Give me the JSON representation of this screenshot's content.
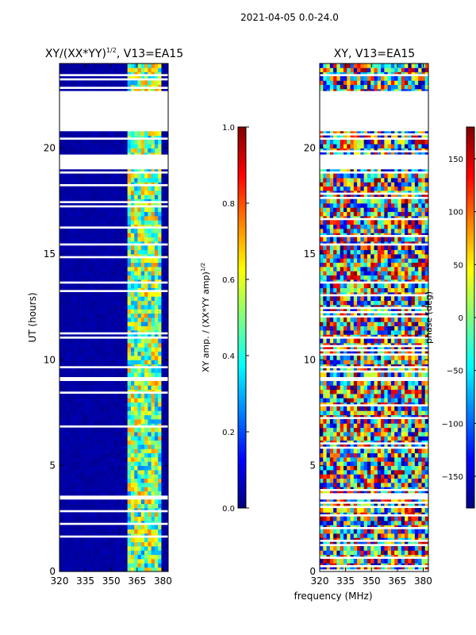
{
  "figure": {
    "suptitle": "2021-04-05 0.0-24.0",
    "xlabel": "frequency (MHz)"
  },
  "chart_data": [
    {
      "type": "heatmap",
      "title_main": "XY/(XX*YY)",
      "title_sup": "1/2",
      "title_rest": ", V13=EA15",
      "xlabel": "",
      "ylabel": "UT (hours)",
      "xlim": [
        320,
        383
      ],
      "ylim": [
        0,
        24
      ],
      "xticks": [
        320,
        335,
        350,
        365,
        380
      ],
      "yticks": [
        0,
        5,
        10,
        15,
        20
      ],
      "colormap": "jet",
      "value_range": [
        0,
        1
      ],
      "colorbar": {
        "label_main": "XY amp. / (XX*YY amp)",
        "label_sup": "1/2",
        "range": [
          0.0,
          1.0
        ],
        "ticks": [
          "0.0",
          "0.2",
          "0.4",
          "0.6",
          "0.8",
          "1.0"
        ],
        "tick_values": [
          0.0,
          0.2,
          0.4,
          0.6,
          0.8,
          1.0
        ]
      },
      "blank_time_ranges_hours": [
        [
          3.5,
          3.7
        ],
        [
          9.0,
          9.2
        ],
        [
          19.0,
          19.6
        ],
        [
          20.8,
          21.0
        ],
        [
          21.0,
          22.0
        ],
        [
          22.05,
          22.6
        ]
      ],
      "active_band_mhz": [
        360,
        380
      ],
      "background_value": 0.02
    },
    {
      "type": "heatmap",
      "title": "XY, V13=EA15",
      "xlabel": "",
      "ylabel": "",
      "xlim": [
        320,
        383
      ],
      "ylim": [
        0,
        24
      ],
      "xticks": [
        320,
        335,
        350,
        365,
        380
      ],
      "yticks": [
        0,
        5,
        10,
        15,
        20
      ],
      "colormap": "jet",
      "value_range": [
        -180,
        180
      ],
      "colorbar": {
        "label": "phase (deg)",
        "range": [
          -180,
          180
        ],
        "ticks": [
          "−150",
          "−100",
          "−50",
          "0",
          "50",
          "100",
          "150"
        ],
        "tick_values": [
          -150,
          -100,
          -50,
          0,
          50,
          100,
          150
        ]
      },
      "blank_time_ranges_hours": [
        [
          3.5,
          3.7
        ],
        [
          9.0,
          9.2
        ],
        [
          19.0,
          19.6
        ],
        [
          20.8,
          21.0
        ],
        [
          21.0,
          22.0
        ],
        [
          22.05,
          22.6
        ]
      ]
    }
  ]
}
